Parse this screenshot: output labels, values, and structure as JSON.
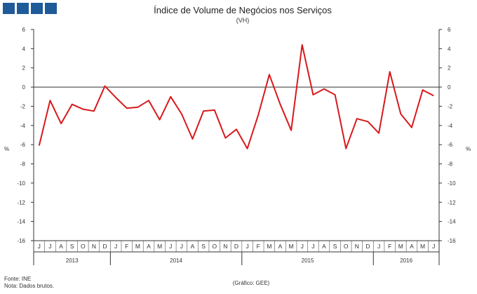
{
  "chart_data": {
    "type": "line",
    "title": "Índice de Volume de Negócios nos Serviços",
    "subtitle": "(VH)",
    "ylabel_left": "%",
    "ylabel_right": "%",
    "ylim": [
      -16,
      6
    ],
    "yticks": [
      6,
      4,
      2,
      0,
      -2,
      -4,
      -6,
      -8,
      -10,
      -12,
      -14,
      -16
    ],
    "months": [
      "J",
      "J",
      "A",
      "S",
      "O",
      "N",
      "D",
      "J",
      "F",
      "M",
      "A",
      "M",
      "J",
      "J",
      "A",
      "S",
      "O",
      "N",
      "D",
      "J",
      "F",
      "M",
      "A",
      "M",
      "J",
      "J",
      "A",
      "S",
      "O",
      "N",
      "D",
      "J",
      "F",
      "M",
      "A",
      "M",
      "J"
    ],
    "years": [
      {
        "label": "2013",
        "start": 0,
        "end": 6
      },
      {
        "label": "2014",
        "start": 7,
        "end": 18
      },
      {
        "label": "2015",
        "start": 19,
        "end": 30
      },
      {
        "label": "2016",
        "start": 31,
        "end": 36
      }
    ],
    "series": [
      {
        "name": "VH",
        "color": "#d7191c",
        "values": [
          -6.1,
          -1.4,
          -3.8,
          -1.8,
          -2.3,
          -2.5,
          0.1,
          -1.1,
          -2.2,
          -2.1,
          -1.4,
          -3.4,
          -1.0,
          -2.8,
          -5.4,
          -2.5,
          -2.4,
          -5.3,
          -4.4,
          -6.4,
          -2.9,
          1.3,
          -1.8,
          -4.5,
          4.4,
          -0.8,
          -0.2,
          -0.8,
          -6.4,
          -3.3,
          -3.6,
          -4.8,
          1.6,
          -2.8,
          -4.2,
          -0.3,
          -0.9
        ]
      }
    ]
  },
  "notes": {
    "source": "Fonte: INE",
    "note": "Nota: Dados brutos.",
    "credit": "(Gráfico: GEE)"
  },
  "colors": {
    "logo": "#1f5a99",
    "line": "#d7191c"
  }
}
